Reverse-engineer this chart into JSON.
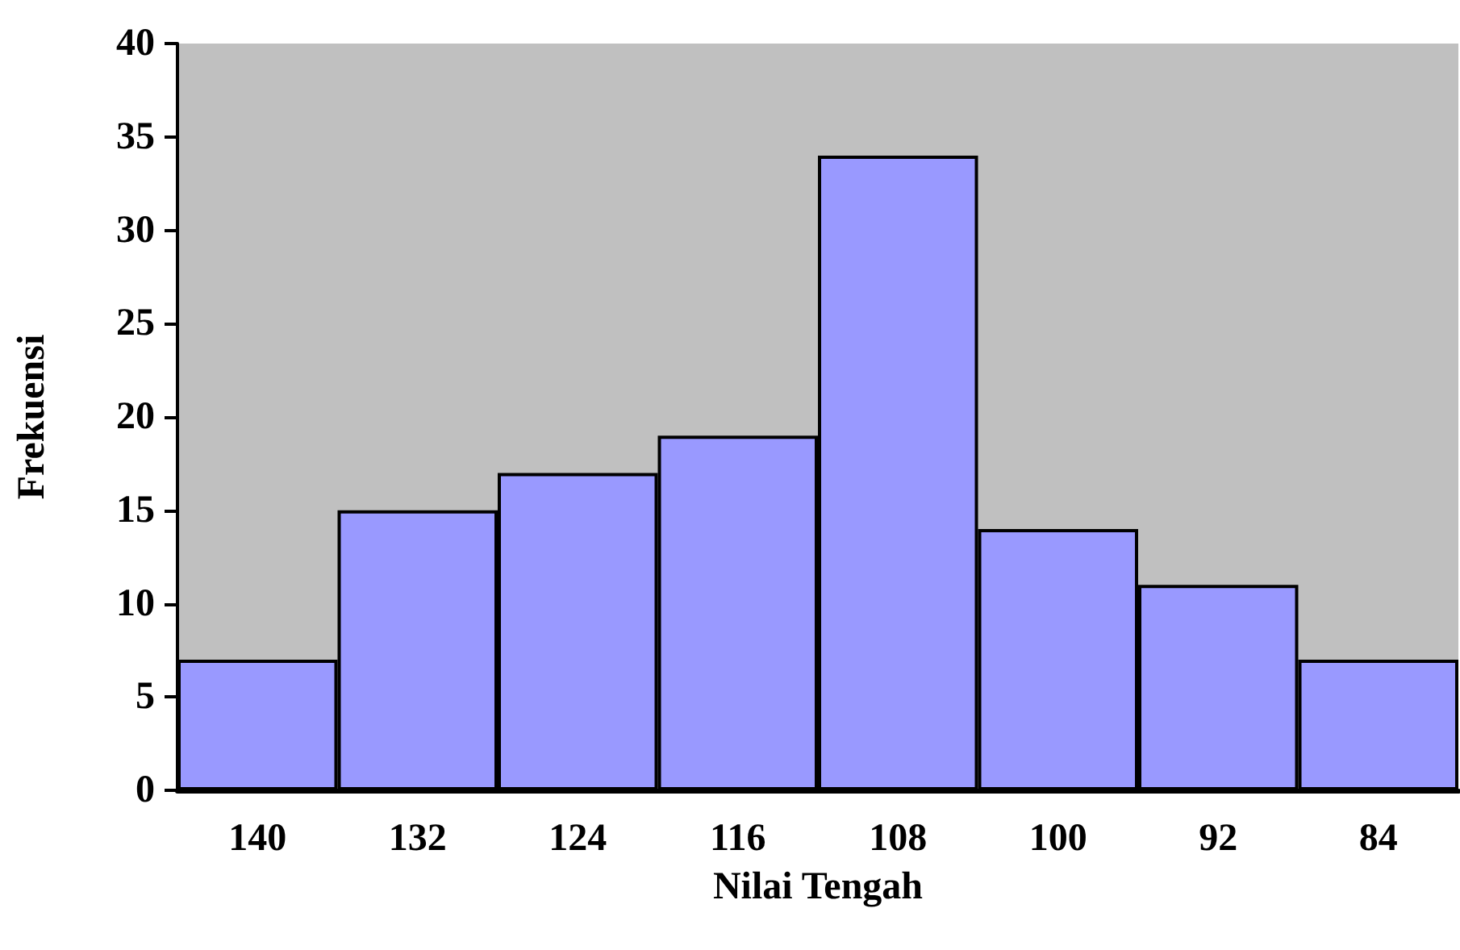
{
  "chart_data": {
    "type": "bar",
    "xlabel": "Nilai Tengah",
    "ylabel": "Frekuensi",
    "categories": [
      "140",
      "132",
      "124",
      "116",
      "108",
      "100",
      "92",
      "84"
    ],
    "values": [
      7,
      15,
      17,
      19,
      34,
      14,
      11,
      7
    ],
    "color": "#9999ff",
    "ylim": [
      0,
      40
    ],
    "yticks": [
      0,
      5,
      10,
      15,
      20,
      25,
      30,
      35,
      40
    ]
  }
}
